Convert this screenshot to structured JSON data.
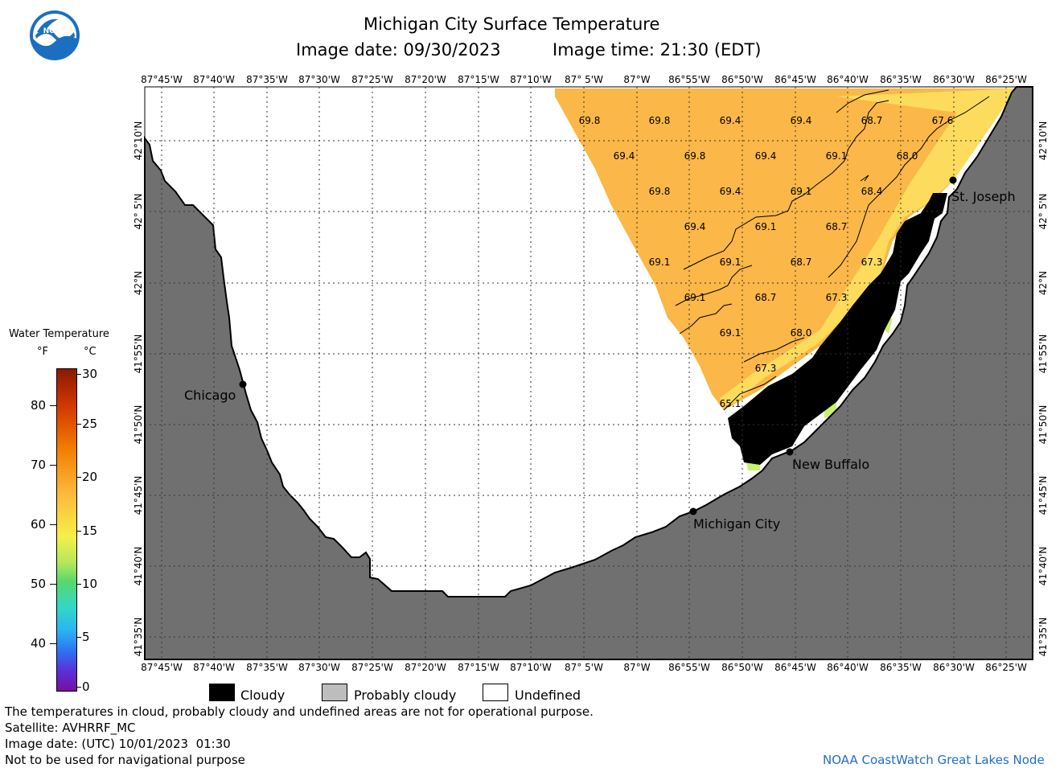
{
  "header": {
    "title": "Michigan City Surface Temperature",
    "image_date": "Image date: 09/30/2023",
    "image_time": "Image time: 21:30 (EDT)"
  },
  "logo": {
    "text": "NOAA",
    "icon": "noaa-logo-icon"
  },
  "map": {
    "lon_labels": [
      "87°45'W",
      "87°40'W",
      "87°35'W",
      "87°30'W",
      "87°25'W",
      "87°20'W",
      "87°15'W",
      "87°10'W",
      "87° 5'W",
      "87°W",
      "86°55'W",
      "86°50'W",
      "86°45'W",
      "86°40'W",
      "86°35'W",
      "86°30'W",
      "86°25'W"
    ],
    "lat_labels": [
      "42°10'N",
      "42° 5'N",
      "42°N",
      "41°55'N",
      "41°50'N",
      "41°45'N",
      "41°40'N",
      "41°35'N"
    ],
    "places": [
      {
        "name": "Chicago"
      },
      {
        "name": "St. Joseph"
      },
      {
        "name": "New Buffalo"
      },
      {
        "name": "Michigan City"
      }
    ],
    "temperature_labels": [
      {
        "v": "69.8"
      },
      {
        "v": "69.8"
      },
      {
        "v": "69.4"
      },
      {
        "v": "69.4"
      },
      {
        "v": "68.7"
      },
      {
        "v": "67.6"
      },
      {
        "v": "69.4"
      },
      {
        "v": "69.8"
      },
      {
        "v": "69.4"
      },
      {
        "v": "69.1"
      },
      {
        "v": "68.0"
      },
      {
        "v": "69.8"
      },
      {
        "v": "69.4"
      },
      {
        "v": "69.1"
      },
      {
        "v": "68.4"
      },
      {
        "v": "69.4"
      },
      {
        "v": "69.1"
      },
      {
        "v": "68.7"
      },
      {
        "v": "69.1"
      },
      {
        "v": "69.1"
      },
      {
        "v": "68.7"
      },
      {
        "v": "67.3"
      },
      {
        "v": "69.1"
      },
      {
        "v": "68.7"
      },
      {
        "v": "67.3"
      },
      {
        "v": "69.1"
      },
      {
        "v": "68.0"
      },
      {
        "v": "67.3"
      },
      {
        "v": "65.1"
      }
    ],
    "colors": {
      "water_warm": "#FBB747",
      "water_edge": "#FDDB5C",
      "land": "#707070",
      "cloud": "#000000",
      "undefined": "#ffffff"
    }
  },
  "colorbar": {
    "title": "Water Temperature",
    "unit_f": "°F",
    "unit_c": "°C",
    "f_ticks": [
      "80",
      "70",
      "60",
      "50",
      "40"
    ],
    "c_ticks": [
      "30",
      "25",
      "20",
      "15",
      "10",
      "5",
      "0"
    ]
  },
  "legend": {
    "items": [
      {
        "label": "Cloudy",
        "color": "#000000"
      },
      {
        "label": "Probably cloudy",
        "color": "#bdbdbd"
      },
      {
        "label": "Undefined",
        "color": "#ffffff"
      }
    ]
  },
  "footer": {
    "note": "The temperatures in cloud, probably cloudy and undefined areas are not for operational purpose.",
    "satellite": "Satellite: AVHRRF_MC",
    "utc_date": "Image date: (UTC) 10/01/2023  01:30",
    "nav": "Not to be used for navigational purpose",
    "credit": "NOAA CoastWatch Great Lakes Node"
  }
}
